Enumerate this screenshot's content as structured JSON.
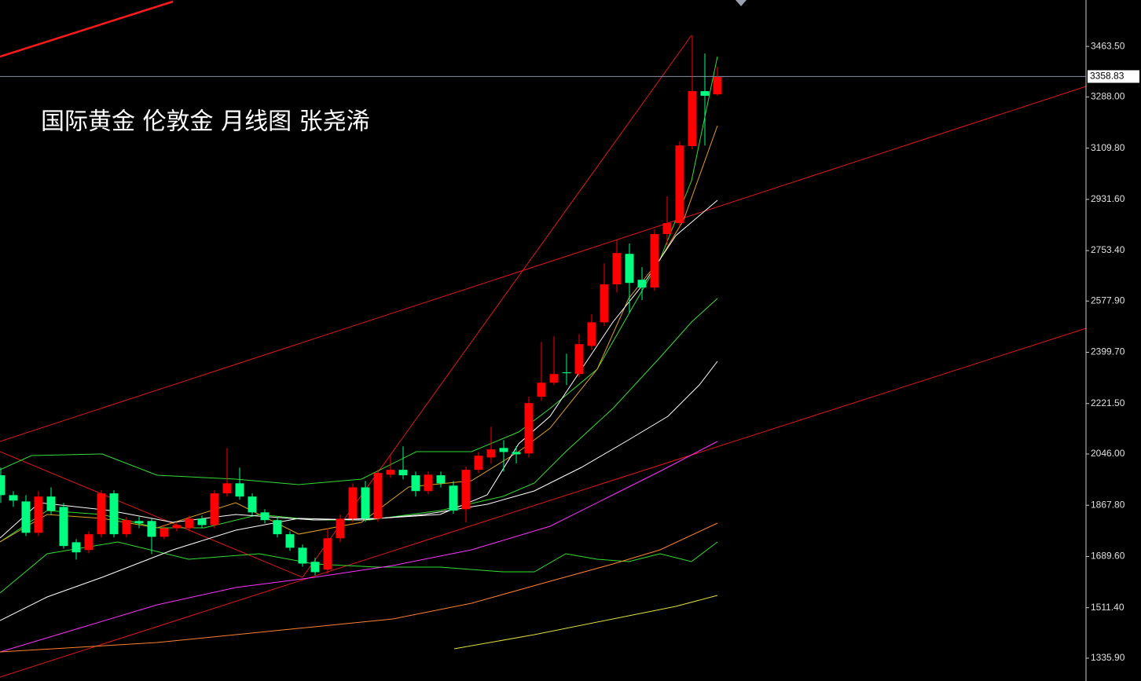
{
  "chart_data": {
    "type": "candlestick",
    "title": "国际黄金 伦敦金 月线图 张尧浠",
    "up_color": "#ff0000",
    "down_color": "#00ff80",
    "open": [
      1972,
      1903,
      1881,
      1772,
      1898,
      1862,
      1739,
      1712,
      1767,
      1909,
      1767,
      1813,
      1813,
      1758,
      1788,
      1788,
      1821,
      1799,
      1909,
      1944,
      1898,
      1843,
      1816,
      1767,
      1720,
      1671,
      1644,
      1753,
      1821,
      1930,
      1821,
      1974,
      1991,
      1972,
      1917,
      1972,
      1936,
      1854,
      1991,
      2034,
      2067,
      2053,
      2048,
      2245,
      2294,
      2330,
      2324,
      2422,
      2504,
      2636,
      2742,
      2652,
      2625,
      2811,
      2849,
      3117,
      3308,
      3297
    ],
    "high": [
      1999,
      1917,
      1903,
      1917,
      1930,
      1876,
      1750,
      1777,
      1920,
      1920,
      1827,
      1827,
      1821,
      1799,
      1810,
      1832,
      1832,
      1920,
      2067,
      1999,
      1909,
      1854,
      1827,
      1777,
      1731,
      1685,
      1788,
      1835,
      1944,
      1952,
      1991,
      2040,
      2073,
      1985,
      1985,
      1985,
      1952,
      2002,
      2053,
      2141,
      2094,
      2073,
      2245,
      2436,
      2455,
      2395,
      2463,
      2532,
      2709,
      2791,
      2778,
      2696,
      2827,
      2942,
      3133,
      3502,
      3439,
      3393
    ],
    "low": [
      1876,
      1862,
      1761,
      1761,
      1835,
      1717,
      1679,
      1701,
      1756,
      1756,
      1756,
      1788,
      1698,
      1750,
      1777,
      1777,
      1788,
      1788,
      1898,
      1887,
      1832,
      1805,
      1756,
      1709,
      1654,
      1624,
      1630,
      1739,
      1808,
      1810,
      1810,
      1963,
      1958,
      1898,
      1906,
      1930,
      1838,
      1808,
      1980,
      2013,
      1985,
      2013,
      2034,
      2231,
      2286,
      2286,
      2313,
      2409,
      2491,
      2608,
      2537,
      2581,
      2614,
      2772,
      2838,
      3106,
      3119,
      3292
    ],
    "close": [
      1903,
      1884,
      1772,
      1898,
      1849,
      1726,
      1704,
      1767,
      1909,
      1767,
      1816,
      1805,
      1758,
      1788,
      1799,
      1821,
      1799,
      1909,
      1944,
      1898,
      1843,
      1816,
      1767,
      1720,
      1665,
      1635,
      1753,
      1821,
      1930,
      1821,
      1980,
      1991,
      1972,
      1917,
      1974,
      1944,
      1849,
      1991,
      2040,
      2062,
      2053,
      2045,
      2223,
      2294,
      2324,
      2327,
      2428,
      2504,
      2636,
      2745,
      2641,
      2625,
      2811,
      2849,
      3119,
      3308,
      3292,
      3357
    ],
    "last_price": 3358.83,
    "ylim": [
      1256.5,
      3625
    ],
    "yticks": [
      {
        "value": 3463.5,
        "label": "3463.50"
      },
      {
        "value": 3288,
        "label": "3288.00"
      },
      {
        "value": 3109.8,
        "label": "3109.80"
      },
      {
        "value": 2931.6,
        "label": "2931.60"
      },
      {
        "value": 2753.4,
        "label": "2753.40"
      },
      {
        "value": 2577.9,
        "label": "2577.90"
      },
      {
        "value": 2399.7,
        "label": "2399.70"
      },
      {
        "value": 2221.5,
        "label": "2221.50"
      },
      {
        "value": 2046,
        "label": "2046.00"
      },
      {
        "value": 1867.8,
        "label": "1867.80"
      },
      {
        "value": 1689.6,
        "label": "1689.60"
      },
      {
        "value": 1511.4,
        "label": "1511.40"
      },
      {
        "value": 1335.9,
        "label": "1335.90"
      }
    ]
  }
}
